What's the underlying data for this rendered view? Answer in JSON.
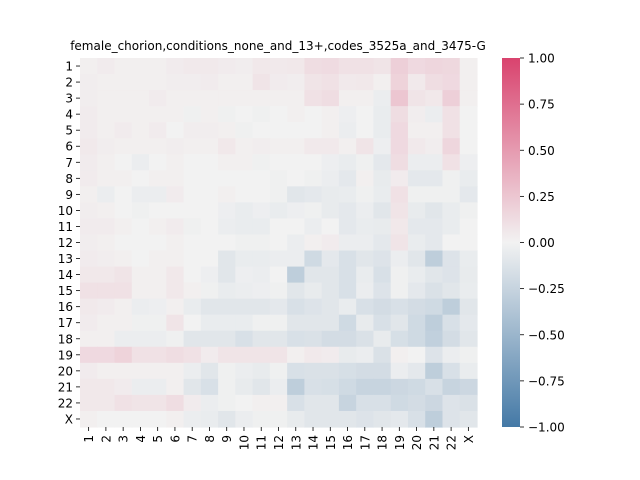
{
  "colors": {
    "negative": "#4479a6",
    "neutral": "#f2f2f2",
    "positive": "#d9436e"
  },
  "chart_data": {
    "type": "heatmap",
    "title": "female_chorion,conditions_none_and_13+,codes_3525a_and_3475-G",
    "rows": [
      "1",
      "2",
      "3",
      "4",
      "5",
      "6",
      "7",
      "8",
      "9",
      "10",
      "11",
      "12",
      "13",
      "14",
      "15",
      "16",
      "17",
      "18",
      "19",
      "20",
      "21",
      "22",
      "X"
    ],
    "cols": [
      "1",
      "2",
      "3",
      "4",
      "5",
      "6",
      "7",
      "8",
      "9",
      "10",
      "11",
      "12",
      "13",
      "14",
      "15",
      "16",
      "17",
      "18",
      "19",
      "20",
      "21",
      "22",
      "X"
    ],
    "vmin": -1.0,
    "vmax": 1.0,
    "colorbar_ticks": [
      {
        "value": 1.0,
        "label": "1.00"
      },
      {
        "value": 0.75,
        "label": "0.75"
      },
      {
        "value": 0.5,
        "label": "0.50"
      },
      {
        "value": 0.25,
        "label": "0.25"
      },
      {
        "value": 0.0,
        "label": "0.00"
      },
      {
        "value": -0.25,
        "label": "−0.25"
      },
      {
        "value": -0.5,
        "label": "−0.50"
      },
      {
        "value": -0.75,
        "label": "−0.75"
      },
      {
        "value": -1.0,
        "label": "−1.00"
      }
    ],
    "values": [
      [
        0.02,
        0.04,
        0.02,
        0.02,
        0.02,
        0.04,
        0.05,
        0.05,
        0.04,
        0.03,
        0.06,
        0.05,
        0.06,
        0.12,
        0.13,
        0.1,
        0.1,
        0.08,
        0.2,
        0.14,
        0.16,
        0.15,
        0.02
      ],
      [
        0.03,
        0.02,
        0.02,
        0.02,
        0.02,
        0.03,
        0.03,
        0.04,
        0.02,
        0.02,
        0.08,
        0.04,
        0.03,
        0.08,
        0.1,
        0.05,
        0.06,
        0.02,
        0.18,
        0.05,
        0.12,
        0.14,
        0.02
      ],
      [
        0.03,
        0.02,
        0.02,
        0.02,
        0.04,
        0.02,
        0.02,
        0.02,
        0.02,
        0.02,
        0.02,
        0.02,
        0.02,
        0.1,
        0.12,
        0.02,
        0.02,
        -0.04,
        0.25,
        0.08,
        0.06,
        0.2,
        0.02
      ],
      [
        0.04,
        0.02,
        0.02,
        0.02,
        0.02,
        0.02,
        -0.02,
        0.02,
        -0.02,
        0.0,
        -0.02,
        0.0,
        0.02,
        0.0,
        0.02,
        -0.03,
        0.0,
        -0.05,
        0.12,
        0.03,
        -0.04,
        0.1,
        0.0
      ],
      [
        0.04,
        0.02,
        0.04,
        0.02,
        0.04,
        0.0,
        0.03,
        0.03,
        0.02,
        -0.02,
        0.0,
        0.0,
        0.0,
        0.0,
        0.02,
        -0.04,
        0.0,
        -0.05,
        0.14,
        0.02,
        0.02,
        0.1,
        0.0
      ],
      [
        0.05,
        0.03,
        0.02,
        0.02,
        0.02,
        0.03,
        0.02,
        0.02,
        0.06,
        0.02,
        0.03,
        0.02,
        0.02,
        0.05,
        0.05,
        0.02,
        0.08,
        -0.03,
        0.14,
        0.05,
        0.03,
        0.16,
        0.0
      ],
      [
        0.04,
        0.02,
        0.0,
        -0.04,
        0.0,
        0.02,
        0.0,
        0.0,
        0.02,
        0.02,
        -0.02,
        0.0,
        0.0,
        0.0,
        -0.03,
        -0.05,
        -0.02,
        -0.08,
        0.12,
        -0.04,
        -0.04,
        0.1,
        -0.03
      ],
      [
        0.04,
        0.02,
        0.02,
        0.0,
        0.02,
        0.02,
        0.0,
        0.0,
        0.0,
        0.0,
        0.0,
        -0.02,
        0.0,
        -0.02,
        -0.04,
        -0.08,
        0.02,
        -0.06,
        0.04,
        -0.08,
        -0.08,
        -0.02,
        -0.05
      ],
      [
        0.02,
        -0.04,
        0.0,
        -0.04,
        -0.04,
        0.04,
        0.0,
        0.0,
        0.02,
        0.0,
        0.0,
        -0.02,
        -0.1,
        -0.08,
        -0.06,
        -0.05,
        -0.02,
        -0.05,
        0.1,
        -0.02,
        -0.02,
        -0.02,
        -0.08
      ],
      [
        0.03,
        0.02,
        0.0,
        -0.02,
        0.0,
        0.0,
        0.0,
        0.0,
        -0.03,
        -0.05,
        -0.03,
        -0.05,
        -0.03,
        -0.02,
        -0.06,
        -0.08,
        -0.04,
        -0.1,
        0.08,
        -0.06,
        -0.1,
        -0.05,
        -0.02
      ],
      [
        0.04,
        0.04,
        0.02,
        0.0,
        0.02,
        0.04,
        -0.02,
        0.0,
        -0.04,
        -0.05,
        -0.05,
        0.0,
        0.0,
        -0.04,
        0.0,
        -0.08,
        -0.05,
        -0.06,
        0.06,
        -0.08,
        -0.08,
        -0.05,
        0.0
      ],
      [
        0.03,
        0.02,
        0.0,
        0.0,
        0.0,
        0.02,
        0.0,
        0.0,
        0.0,
        -0.02,
        -0.02,
        0.0,
        -0.04,
        0.02,
        0.04,
        -0.04,
        -0.04,
        -0.08,
        0.08,
        -0.05,
        -0.08,
        0.0,
        0.0
      ],
      [
        0.04,
        0.03,
        0.02,
        0.0,
        0.02,
        0.02,
        0.0,
        0.0,
        -0.1,
        -0.05,
        -0.05,
        -0.04,
        -0.04,
        -0.2,
        -0.08,
        -0.15,
        -0.1,
        -0.12,
        -0.04,
        -0.1,
        -0.3,
        -0.12,
        -0.05
      ],
      [
        0.06,
        0.06,
        0.08,
        0.02,
        0.02,
        0.06,
        0.0,
        -0.03,
        -0.1,
        -0.03,
        -0.04,
        0.0,
        -0.3,
        -0.1,
        -0.1,
        -0.15,
        -0.05,
        -0.15,
        -0.02,
        -0.05,
        -0.1,
        -0.12,
        -0.06
      ],
      [
        0.1,
        0.1,
        0.1,
        0.02,
        0.02,
        0.06,
        0.02,
        -0.02,
        -0.05,
        -0.04,
        -0.03,
        -0.02,
        -0.1,
        -0.06,
        -0.1,
        -0.15,
        -0.04,
        -0.12,
        -0.02,
        -0.08,
        -0.14,
        -0.1,
        -0.05
      ],
      [
        0.05,
        0.04,
        0.02,
        -0.04,
        -0.03,
        0.02,
        -0.05,
        -0.1,
        -0.1,
        -0.1,
        -0.1,
        -0.08,
        -0.15,
        -0.12,
        -0.1,
        -0.05,
        -0.15,
        -0.18,
        -0.15,
        -0.18,
        -0.2,
        -0.3,
        -0.1
      ],
      [
        0.04,
        0.02,
        0.02,
        -0.02,
        -0.02,
        0.08,
        0.0,
        -0.05,
        -0.05,
        -0.05,
        -0.02,
        -0.02,
        -0.1,
        -0.1,
        -0.1,
        -0.2,
        -0.06,
        -0.15,
        -0.1,
        -0.2,
        -0.3,
        -0.15,
        -0.08
      ],
      [
        0.02,
        0.02,
        -0.04,
        -0.04,
        -0.04,
        -0.02,
        -0.1,
        -0.1,
        -0.1,
        -0.15,
        -0.1,
        -0.1,
        -0.15,
        -0.14,
        -0.18,
        -0.18,
        -0.14,
        -0.06,
        -0.16,
        -0.2,
        -0.28,
        -0.18,
        -0.1
      ],
      [
        0.14,
        0.14,
        0.18,
        0.1,
        0.1,
        0.12,
        0.1,
        0.04,
        0.08,
        0.08,
        0.08,
        0.08,
        0.02,
        0.05,
        0.04,
        -0.06,
        -0.04,
        -0.14,
        0.02,
        0.0,
        -0.12,
        -0.04,
        -0.02
      ],
      [
        0.04,
        0.02,
        0.02,
        0.02,
        0.02,
        0.02,
        -0.04,
        -0.1,
        -0.02,
        -0.04,
        -0.06,
        -0.02,
        -0.15,
        -0.14,
        -0.14,
        -0.16,
        -0.18,
        -0.18,
        -0.04,
        -0.08,
        -0.3,
        -0.15,
        -0.05
      ],
      [
        0.06,
        0.06,
        0.04,
        -0.04,
        -0.04,
        0.02,
        -0.1,
        -0.15,
        -0.02,
        -0.06,
        -0.1,
        -0.04,
        -0.3,
        -0.15,
        -0.16,
        -0.2,
        -0.25,
        -0.25,
        -0.22,
        -0.2,
        -0.15,
        -0.25,
        -0.22
      ],
      [
        0.06,
        0.06,
        0.1,
        0.08,
        0.08,
        0.12,
        0.04,
        -0.04,
        -0.02,
        0.0,
        0.02,
        0.02,
        -0.15,
        -0.1,
        -0.1,
        -0.25,
        -0.15,
        -0.15,
        -0.2,
        -0.18,
        -0.22,
        -0.12,
        -0.14
      ],
      [
        0.02,
        0.0,
        0.0,
        0.0,
        0.0,
        0.02,
        -0.04,
        -0.05,
        -0.1,
        -0.04,
        -0.02,
        -0.02,
        -0.06,
        -0.1,
        -0.1,
        -0.1,
        -0.12,
        -0.1,
        -0.08,
        -0.15,
        -0.3,
        -0.12,
        -0.1
      ]
    ]
  }
}
